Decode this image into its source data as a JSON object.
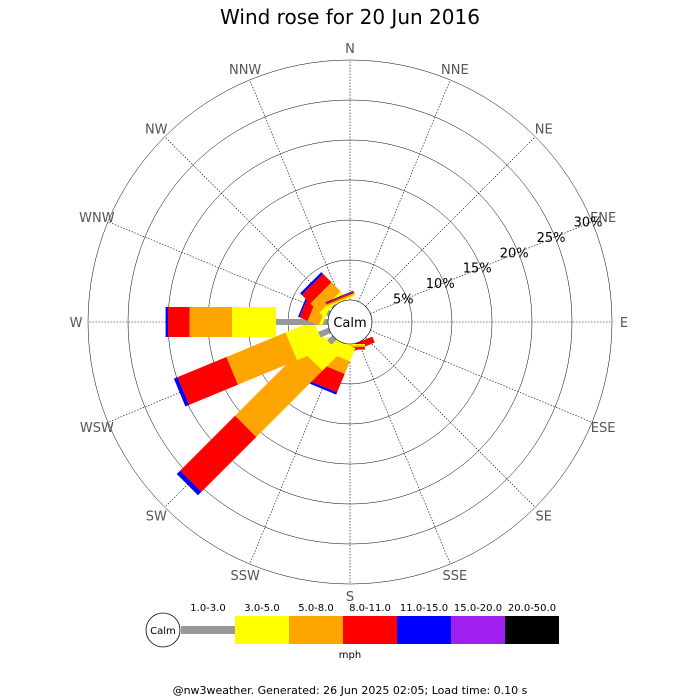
{
  "chart_data": {
    "type": "wind-rose",
    "title": "Wind rose for 20 Jun 2016",
    "directions": [
      "N",
      "NNE",
      "NE",
      "ENE",
      "E",
      "ESE",
      "SE",
      "SSE",
      "S",
      "SSW",
      "SW",
      "WSW",
      "W",
      "WNW",
      "NW",
      "NNW"
    ],
    "ring_labels": [
      "5%",
      "10%",
      "15%",
      "20%",
      "25%",
      "30%"
    ],
    "ring_values": [
      5,
      10,
      15,
      20,
      25,
      30
    ],
    "r_max_percent": 30,
    "calm_label": "Calm",
    "speed_bins": [
      {
        "label": "1.0-3.0",
        "color": "#999999"
      },
      {
        "label": "3.0-5.0",
        "color": "#ffff00"
      },
      {
        "label": "5.0-8.0",
        "color": "#ffa500"
      },
      {
        "label": "8.0-11.0",
        "color": "#ff0000"
      },
      {
        "label": "11.0-15.0",
        "color": "#0000ff"
      },
      {
        "label": "15.0-20.0",
        "color": "#a020f0"
      },
      {
        "label": "20.0-50.0",
        "color": "#000000"
      }
    ],
    "units": "mph",
    "series_cumulative_percent": {
      "SSE": [
        0.0,
        0.0,
        0.0,
        0.8,
        0.8,
        0.8,
        0.8
      ],
      "S": [
        0.0,
        0.2,
        0.4,
        0.7,
        0.7,
        0.7,
        0.7
      ],
      "SSW": [
        0.0,
        1.8,
        3.5,
        6.0,
        6.3,
        6.3,
        6.3
      ],
      "SW": [
        0.9,
        4.0,
        15.7,
        25.4,
        26.0,
        26.0,
        26.0
      ],
      "WSW": [
        1.4,
        5.2,
        13.2,
        19.8,
        20.3,
        20.3,
        20.3
      ],
      "W": [
        6.5,
        12.0,
        17.3,
        20.0,
        20.3,
        20.3,
        20.3
      ],
      "WNW": [
        0.3,
        0.7,
        2.2,
        3.3,
        3.5,
        3.5,
        3.5
      ],
      "NW": [
        0.2,
        0.8,
        2.4,
        3.9,
        4.2,
        4.2,
        4.2
      ],
      "NNW": [
        0.0,
        0.2,
        0.4,
        0.6,
        0.7,
        0.7,
        0.7
      ]
    }
  },
  "footer": "@nw3weather. Generated: 26 Jun 2025 02:05; Load time: 0.10 s"
}
